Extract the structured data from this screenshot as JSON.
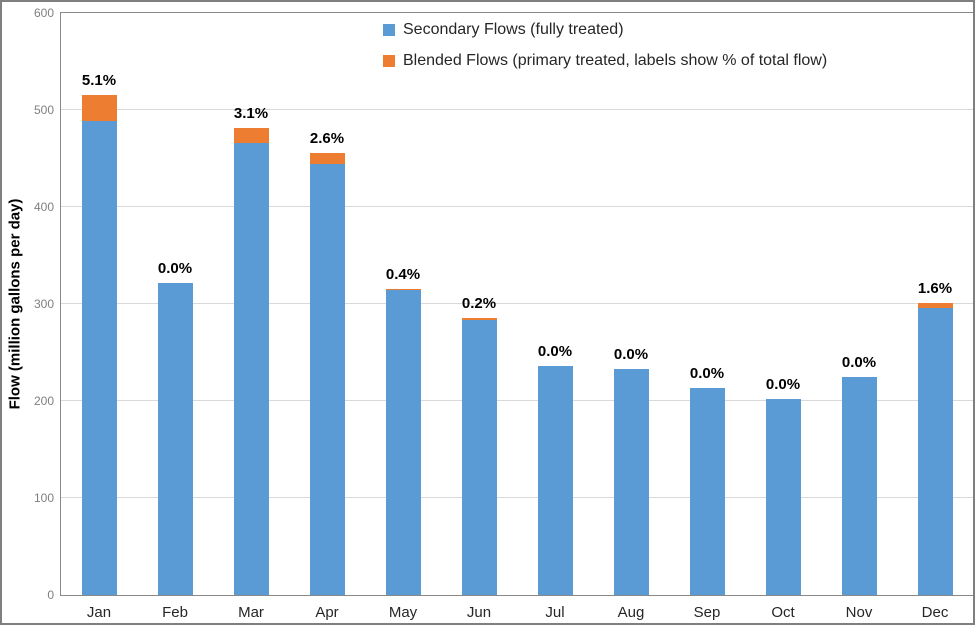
{
  "chart_data": {
    "type": "bar",
    "stacked": true,
    "title": "",
    "categories": [
      "Jan",
      "Feb",
      "Mar",
      "Apr",
      "May",
      "Jun",
      "Jul",
      "Aug",
      "Sep",
      "Oct",
      "Nov",
      "Dec"
    ],
    "series": [
      {
        "name": "Secondary Flows (fully treated)",
        "color": "#5B9BD5",
        "values": [
          489,
          322,
          466,
          444,
          314,
          284,
          236,
          233,
          213,
          202,
          225,
          296
        ]
      },
      {
        "name": "Blended Flows (primary treated, labels show % of total flow)",
        "color": "#ED7D31",
        "values": [
          26,
          0,
          15,
          12,
          1.3,
          0.6,
          0,
          0,
          0,
          0,
          0,
          5
        ]
      }
    ],
    "bar_labels": [
      "5.1%",
      "0.0%",
      "3.1%",
      "2.6%",
      "0.4%",
      "0.2%",
      "0.0%",
      "0.0%",
      "0.0%",
      "0.0%",
      "0.0%",
      "1.6%"
    ],
    "xlabel": "",
    "ylabel": "Flow (million gallons per day)",
    "ylim": [
      0,
      600
    ],
    "yticks": [
      0,
      100,
      200,
      300,
      400,
      500,
      600
    ],
    "grid": true,
    "legend_position": "top-center-inside"
  },
  "colors": {
    "series_secondary": "#5B9BD5",
    "series_blended": "#ED7D31",
    "gridline": "#D9D9D9",
    "plot_border": "#898989",
    "outer_border": "#7F7F7F",
    "y_tick_text": "#7F7F7F",
    "x_tick_text": "#262626",
    "bar_label_text": "#000000"
  }
}
